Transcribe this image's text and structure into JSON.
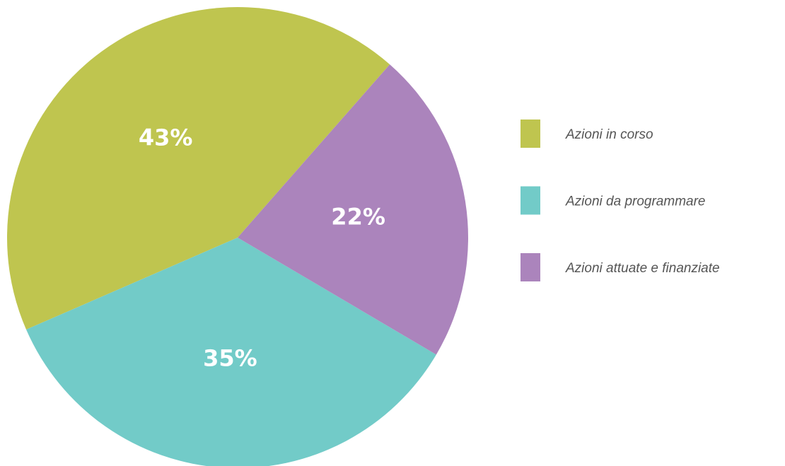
{
  "chart_data": {
    "type": "pie",
    "categories": [
      "Azioni in corso",
      "Azioni da programmare",
      "Azioni attuate e finanziate"
    ],
    "values": [
      43,
      35,
      22
    ],
    "value_labels": [
      "43%",
      "35%",
      "22%"
    ],
    "colors": [
      "#bfc54f",
      "#72cbc8",
      "#ab84bc"
    ],
    "legend": "right"
  }
}
